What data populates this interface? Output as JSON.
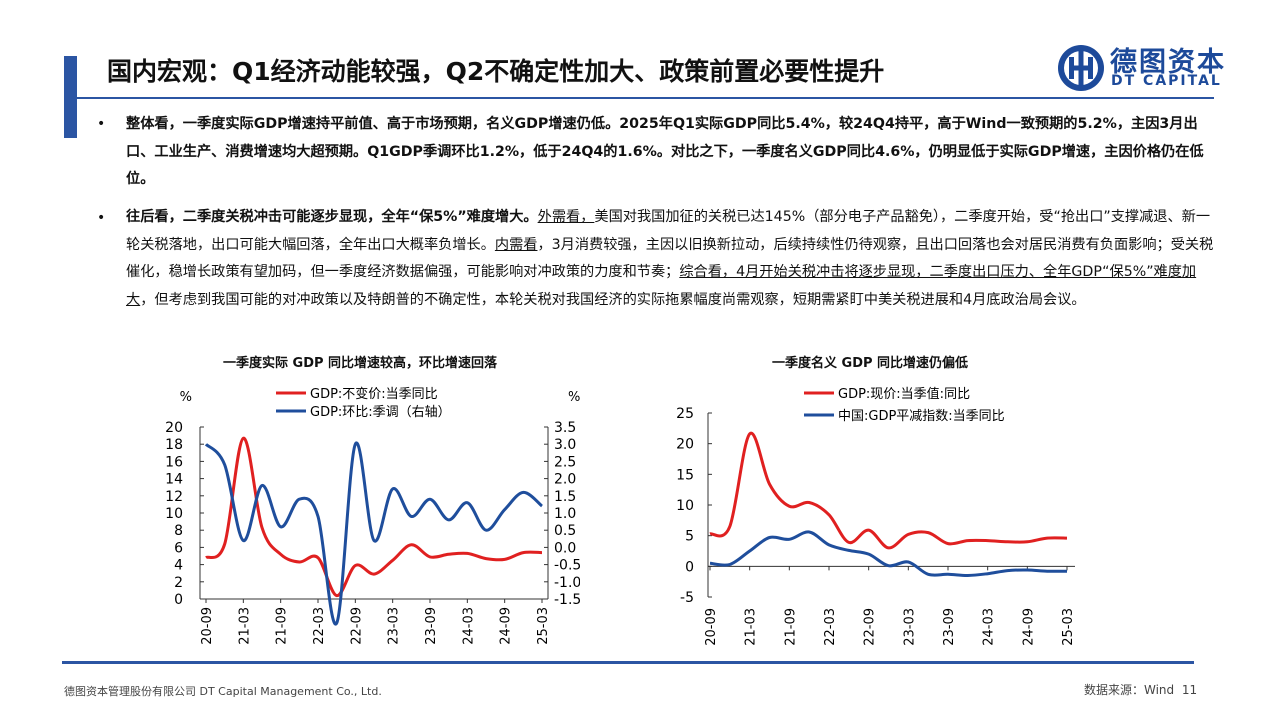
{
  "header": {
    "title": "国内宏观：Q1经济动能较强，Q2不确定性加大、政策前置必要性提升",
    "logo_cn": "德图资本",
    "logo_en": "DT CAPITAL"
  },
  "bullets": [
    {
      "marker": "•",
      "text": "整体看，一季度实际GDP增速持平前值、高于市场预期，名义GDP增速仍低。2025年Q1实际GDP同比5.4%，较24Q4持平，高于Wind一致预期的5.2%，主因3月出口、工业生产、消费增速均大超预期。Q1GDP季调环比1.2%，低于24Q4的1.6%。对比之下，一季度名义GDP同比4.6%，仍明显低于实际GDP增速，主因价格仍在低位。"
    },
    {
      "marker": "•",
      "lead": "往后看，二季度关税冲击可能逐步显现，全年“保5%”难度增大。",
      "ext_label": "外需看，",
      "ext_text": "美国对我国加征的关税已达145%（部分电子产品豁免），二季度开始，受“抢出口”支撑减退、新一轮关税落地，出口可能大幅回落，全年出口大概率负增长。",
      "int_label": "内需看",
      "int_text": "，3月消费较强，主因以旧换新拉动，后续持续性仍待观察，且出口回落也会对居民消费有负面影响；受关税催化，稳增长政策有望加码，但一季度经济数据偏强，可能影响对冲政策的力度和节奏；",
      "sum_label": "综合看，4月开始关税冲击将逐步显现，二季度出口压力、全年GDP“保5%”难度加大",
      "sum_text": "，但考虑到我国可能的对冲政策以及特朗普的不确定性，本轮关税对我国经济的实际拖累幅度尚需观察，短期需紧盯中美关税进展和4月底政治局会议。"
    }
  ],
  "chart_data": [
    {
      "type": "line",
      "title": "一季度实际 GDP 同比增速较高，环比增速回落",
      "x_ticks": [
        "20-09",
        "21-03",
        "21-09",
        "22-03",
        "22-09",
        "23-03",
        "23-09",
        "24-03",
        "24-09",
        "25-03"
      ],
      "y_left": {
        "label": "%",
        "ticks": [
          0,
          2,
          4,
          6,
          8,
          10,
          12,
          14,
          16,
          18,
          20
        ],
        "lim": [
          0,
          20
        ]
      },
      "y_right": {
        "label": "%",
        "ticks": [
          "3.5",
          "3.0",
          "2.5",
          "2.0",
          "1.5",
          "1.0",
          "0.5",
          "0.0",
          "-0.5",
          "-1.0",
          "-1.5"
        ],
        "lim": [
          -1.5,
          3.5
        ]
      },
      "series": [
        {
          "name": "GDP:不变价:当季同比",
          "color": "#e02020",
          "axis": "left",
          "x": [
            "20-09",
            "20-12",
            "21-03",
            "21-06",
            "21-09",
            "21-12",
            "22-03",
            "22-06",
            "22-09",
            "22-12",
            "23-03",
            "23-06",
            "23-09",
            "23-12",
            "24-03",
            "24-06",
            "24-09",
            "24-12",
            "25-03"
          ],
          "values": [
            4.8,
            6.4,
            18.7,
            8.3,
            5.2,
            4.3,
            4.8,
            0.4,
            3.9,
            2.9,
            4.5,
            6.3,
            4.9,
            5.2,
            5.3,
            4.7,
            4.6,
            5.4,
            5.4
          ]
        },
        {
          "name": "GDP:环比:季调（右轴）",
          "color": "#1f4e9c",
          "axis": "right",
          "x": [
            "20-09",
            "20-12",
            "21-03",
            "21-06",
            "21-09",
            "21-12",
            "22-03",
            "22-06",
            "22-09",
            "22-12",
            "23-03",
            "23-06",
            "23-09",
            "23-12",
            "24-03",
            "24-06",
            "24-09",
            "24-12",
            "25-03"
          ],
          "values": [
            3.0,
            2.4,
            0.2,
            1.8,
            0.6,
            1.4,
            0.9,
            -2.2,
            3.0,
            0.2,
            1.7,
            0.9,
            1.4,
            0.8,
            1.3,
            0.5,
            1.1,
            1.6,
            1.2
          ]
        }
      ]
    },
    {
      "type": "line",
      "title": "一季度名义 GDP 同比增速仍偏低",
      "x_ticks": [
        "20-09",
        "21-03",
        "21-09",
        "22-03",
        "22-09",
        "23-03",
        "23-09",
        "24-03",
        "24-09",
        "25-03"
      ],
      "y_left": {
        "ticks": [
          25,
          20,
          15,
          10,
          5,
          0,
          -5
        ],
        "lim": [
          -5,
          25
        ]
      },
      "series": [
        {
          "name": "GDP:现价:当季值:同比",
          "color": "#e02020",
          "x": [
            "20-09",
            "20-12",
            "21-03",
            "21-06",
            "21-09",
            "21-12",
            "22-03",
            "22-06",
            "22-09",
            "22-12",
            "23-03",
            "23-06",
            "23-09",
            "23-12",
            "24-03",
            "24-06",
            "24-09",
            "24-12",
            "25-03"
          ],
          "values": [
            5.3,
            6.5,
            21.6,
            13.4,
            9.8,
            10.4,
            8.4,
            3.9,
            5.9,
            3.0,
            5.2,
            5.5,
            3.7,
            4.2,
            4.2,
            4.0,
            4.0,
            4.6,
            4.6
          ]
        },
        {
          "name": "中国:GDP平减指数:当季同比",
          "color": "#1f4e9c",
          "x": [
            "20-09",
            "20-12",
            "21-03",
            "21-06",
            "21-09",
            "21-12",
            "22-03",
            "22-06",
            "22-09",
            "22-12",
            "23-03",
            "23-06",
            "23-09",
            "23-12",
            "24-03",
            "24-06",
            "24-09",
            "24-12",
            "25-03"
          ],
          "values": [
            0.5,
            0.3,
            2.5,
            4.7,
            4.4,
            5.6,
            3.5,
            2.6,
            2.0,
            0.1,
            0.7,
            -1.3,
            -1.3,
            -1.5,
            -1.2,
            -0.7,
            -0.6,
            -0.8,
            -0.8
          ]
        }
      ]
    }
  ],
  "footer": {
    "company": "德图资本管理股份有限公司 DT Capital Management Co., Ltd.",
    "source": "数据来源：Wind",
    "page": "11"
  }
}
